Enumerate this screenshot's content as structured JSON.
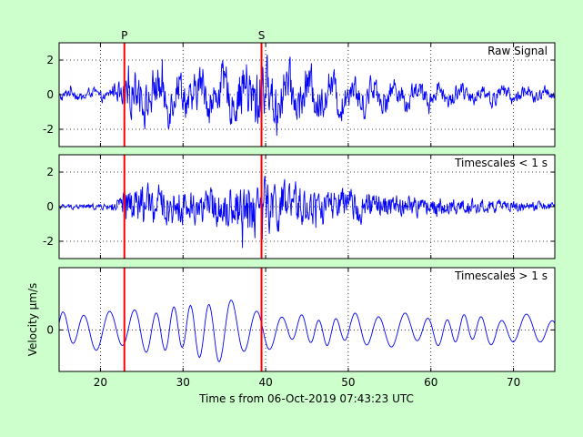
{
  "figure": {
    "background": "#ccffcc",
    "xlabel": "Time s from 06-Oct-2019 07:43:23 UTC",
    "ylabel": "Velocity µm/s"
  },
  "chart_data": [
    {
      "type": "line",
      "title": "Raw Signal",
      "xlim": [
        15,
        75
      ],
      "ylim": [
        -3,
        3
      ],
      "xticks": [
        20,
        30,
        40,
        50,
        60,
        70
      ],
      "yticks": [
        -2,
        0,
        2
      ],
      "grid": true,
      "series_color": "#0000ff",
      "envelope": [
        {
          "t": 15,
          "amp": 0.3
        },
        {
          "t": 21,
          "amp": 0.3
        },
        {
          "t": 22.5,
          "amp": 0.8
        },
        {
          "t": 23,
          "amp": 1.4
        },
        {
          "t": 30,
          "amp": 1.3
        },
        {
          "t": 36,
          "amp": 1.3
        },
        {
          "t": 38.8,
          "amp": 2.3
        },
        {
          "t": 40,
          "amp": 1.7
        },
        {
          "t": 44,
          "amp": 1.4
        },
        {
          "t": 50,
          "amp": 1.0
        },
        {
          "t": 55,
          "amp": 0.8
        },
        {
          "t": 60,
          "amp": 0.6
        },
        {
          "t": 70,
          "amp": 0.45
        },
        {
          "t": 75,
          "amp": 0.35
        }
      ],
      "markers": [
        {
          "label": "P",
          "x": 22.9,
          "color": "#ff0000"
        },
        {
          "label": "S",
          "x": 39.5,
          "color": "#ff0000"
        }
      ]
    },
    {
      "type": "line",
      "title": "Timescales < 1 s",
      "xlim": [
        15,
        75
      ],
      "ylim": [
        -3,
        3
      ],
      "xticks": [
        20,
        30,
        40,
        50,
        60,
        70
      ],
      "yticks": [
        -2,
        0,
        2
      ],
      "grid": true,
      "series_color": "#0000ff",
      "envelope": [
        {
          "t": 15,
          "amp": 0.15
        },
        {
          "t": 21,
          "amp": 0.2
        },
        {
          "t": 22.5,
          "amp": 0.7
        },
        {
          "t": 23,
          "amp": 1.4
        },
        {
          "t": 30,
          "amp": 1.1
        },
        {
          "t": 36,
          "amp": 1.2
        },
        {
          "t": 38.8,
          "amp": 2.4
        },
        {
          "t": 40,
          "amp": 1.8
        },
        {
          "t": 44,
          "amp": 1.3
        },
        {
          "t": 50,
          "amp": 1.0
        },
        {
          "t": 55,
          "amp": 0.8
        },
        {
          "t": 60,
          "amp": 0.6
        },
        {
          "t": 70,
          "amp": 0.35
        },
        {
          "t": 75,
          "amp": 0.25
        }
      ],
      "markers": [
        {
          "x": 22.9,
          "color": "#ff0000"
        },
        {
          "x": 39.5,
          "color": "#ff0000"
        }
      ]
    },
    {
      "type": "line",
      "title": "Timescales > 1 s",
      "xlim": [
        15,
        75
      ],
      "ylim": [
        -1,
        1.5
      ],
      "xticks": [
        20,
        30,
        40,
        50,
        60,
        70
      ],
      "yticks": [
        -2,
        0,
        2
      ],
      "grid": true,
      "series_color": "#0000ff",
      "envelope": [
        {
          "t": 15,
          "amp": 0.35
        },
        {
          "t": 22,
          "amp": 0.45
        },
        {
          "t": 30,
          "amp": 0.5
        },
        {
          "t": 34,
          "amp": 0.75
        },
        {
          "t": 38,
          "amp": 0.55
        },
        {
          "t": 42,
          "amp": 0.3
        },
        {
          "t": 50,
          "amp": 0.3
        },
        {
          "t": 53,
          "amp": 0.4
        },
        {
          "t": 60,
          "amp": 0.3
        },
        {
          "t": 75,
          "amp": 0.3
        }
      ],
      "markers": [
        {
          "x": 22.9,
          "color": "#ff0000"
        },
        {
          "x": 39.5,
          "color": "#ff0000"
        }
      ]
    }
  ]
}
